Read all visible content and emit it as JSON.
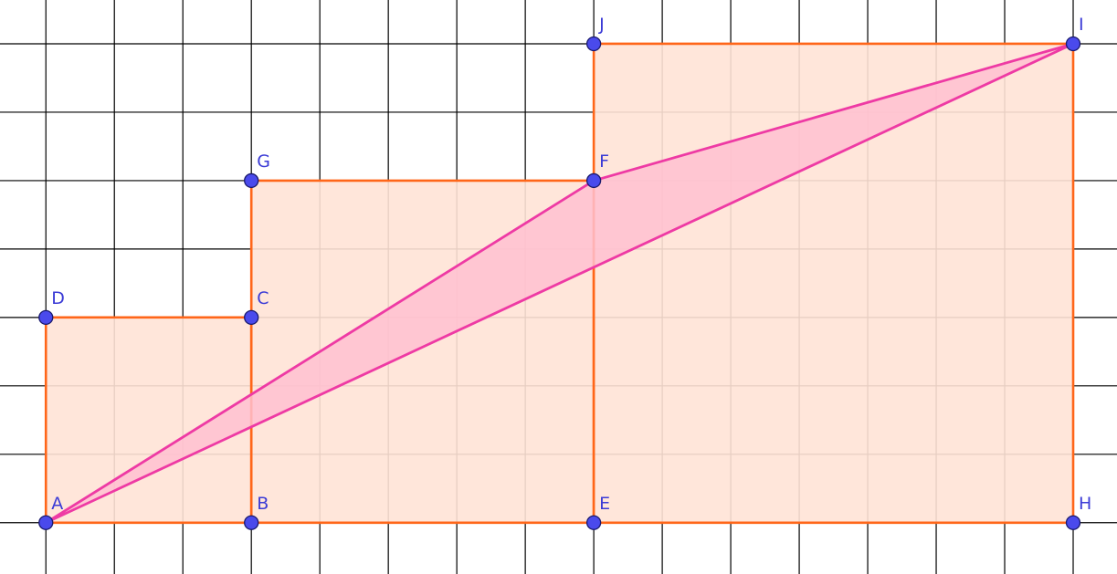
{
  "grid": {
    "x_range": [
      -0.67,
      15.64
    ],
    "y_range": [
      -0.75,
      7.64
    ],
    "step": 1
  },
  "colors": {
    "grid_line": "#000000",
    "square_fill": "#ffe3d6",
    "square_stroke": "#ff6619",
    "triangle_fill": "#ffbfd0",
    "triangle_stroke": "#ee3aa4",
    "point_fill": "#4a4aec",
    "point_stroke": "#1a1a6e",
    "label": "#3b3bd6"
  },
  "squares": [
    {
      "name": "square-ABCD",
      "vertices": [
        "A",
        "B",
        "C",
        "D"
      ]
    },
    {
      "name": "square-BEFG",
      "vertices": [
        "B",
        "E",
        "F",
        "G"
      ]
    },
    {
      "name": "square-EHIJ",
      "vertices": [
        "E",
        "H",
        "I",
        "J"
      ]
    }
  ],
  "triangle": {
    "name": "triangle-AFI",
    "vertices": [
      "A",
      "F",
      "I"
    ]
  },
  "points": [
    {
      "label": "A",
      "x": 0,
      "y": 0
    },
    {
      "label": "B",
      "x": 3,
      "y": 0
    },
    {
      "label": "C",
      "x": 3,
      "y": 3
    },
    {
      "label": "D",
      "x": 0,
      "y": 3
    },
    {
      "label": "E",
      "x": 8,
      "y": 0
    },
    {
      "label": "F",
      "x": 8,
      "y": 5
    },
    {
      "label": "G",
      "x": 3,
      "y": 5
    },
    {
      "label": "H",
      "x": 15,
      "y": 0
    },
    {
      "label": "I",
      "x": 15,
      "y": 7
    },
    {
      "label": "J",
      "x": 8,
      "y": 7
    }
  ]
}
